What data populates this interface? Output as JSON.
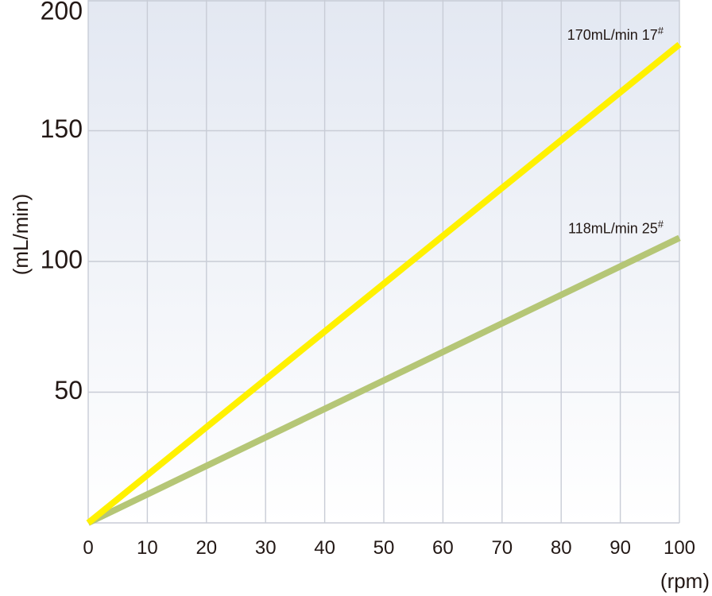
{
  "chart_data": {
    "type": "line",
    "title": "",
    "xlabel": "(rpm)",
    "ylabel": "(mL/min)",
    "xlim": [
      0,
      100
    ],
    "ylim": [
      0,
      200
    ],
    "x_ticks": [
      "0",
      "10",
      "20",
      "30",
      "40",
      "50",
      "60",
      "70",
      "80",
      "90",
      "100"
    ],
    "y_ticks": [
      "50",
      "100",
      "150",
      "200"
    ],
    "grid": true,
    "series": [
      {
        "name": "170mL/min 17#",
        "label_text": "170mL/min 17",
        "label_sup": "#",
        "color": "#fff100",
        "x": [
          0,
          100
        ],
        "y": [
          0,
          183
        ]
      },
      {
        "name": "118mL/min 25#",
        "label_text": "118mL/min 25",
        "label_sup": "#",
        "color": "#b5c676",
        "x": [
          0,
          100
        ],
        "y": [
          0,
          109
        ]
      }
    ]
  },
  "colors": {
    "background_top": "#e3e8f2",
    "background_bottom": "#ffffff",
    "grid": "#c8ccd6",
    "text": "#231815"
  }
}
